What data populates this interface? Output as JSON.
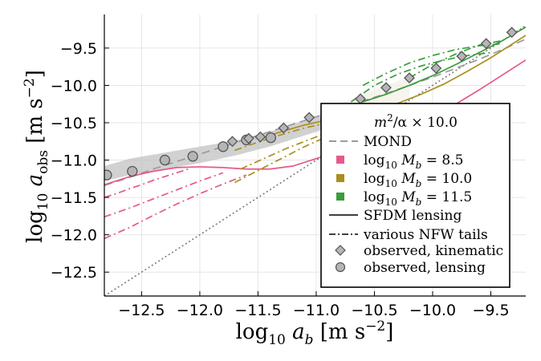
{
  "chart_data": {
    "type": "line",
    "xlabel": "log10 a_b [m s^-2]",
    "ylabel": "log10 a_obs [m s^-2]",
    "xlabel_parts": {
      "log": "log",
      "sub": "10",
      "var": " a",
      "var_sub": "b",
      "unit": " [m s",
      "unit_sup": "−2",
      "close": "]"
    },
    "ylabel_parts": {
      "log": "log",
      "sub": "10",
      "var": " a",
      "var_sub": "obs",
      "unit": " [m s",
      "unit_sup": "−2",
      "close": "]"
    },
    "xlim": [
      -12.82,
      -9.2
    ],
    "ylim": [
      -12.82,
      -9.05
    ],
    "grid": true,
    "xticks": [
      -12.5,
      -12.0,
      -11.5,
      -11.0,
      -10.5,
      -10.0,
      -9.5
    ],
    "xtick_labels": [
      "−12.5",
      "−12.0",
      "−11.5",
      "−11.0",
      "−10.5",
      "−10.0",
      "−9.5"
    ],
    "yticks": [
      -12.5,
      -12.0,
      -11.5,
      -11.0,
      -10.5,
      -10.0,
      -9.5
    ],
    "ytick_labels": [
      "−12.5",
      "−12.0",
      "−11.5",
      "−11.0",
      "−10.5",
      "−10.0",
      "−9.5"
    ],
    "legend": {
      "position": "bottom-right",
      "title": "m²/α × 10.0",
      "entries": [
        {
          "label": "MOND",
          "style": "dash-gray"
        },
        {
          "label": "log10 M_b = 8.5",
          "style": "swatch",
          "color": "#e7588c"
        },
        {
          "label": "log10 M_b = 10.0",
          "style": "swatch",
          "color": "#a8901f"
        },
        {
          "label": "log10 M_b = 11.5",
          "style": "swatch",
          "color": "#3a9c3d"
        },
        {
          "label": "SFDM lensing",
          "style": "solid-black"
        },
        {
          "label": "various NFW tails",
          "style": "dashdot-black"
        },
        {
          "label": "observed, kinematic",
          "style": "diamond"
        },
        {
          "label": "observed, lensing",
          "style": "circle"
        }
      ]
    },
    "legend_math": {
      "title_m": "m",
      "title_sup": "2",
      "title_rest": "/α × 10.0",
      "mb_prefix": "log",
      "mb_sub": "10",
      "mb_var": " M",
      "mb_var_sub": "b",
      "mb_values": [
        " = 8.5",
        " = 10.0",
        " = 11.5"
      ]
    },
    "series": [
      {
        "name": "one-to-one",
        "style": "dotted",
        "color": "#7a7a7a",
        "x": [
          -12.82,
          -9.2
        ],
        "y": [
          -12.82,
          -9.2
        ]
      },
      {
        "name": "MOND",
        "style": "dashed",
        "color": "#9a9a9a",
        "x": [
          -12.82,
          -12.6,
          -12.4,
          -12.2,
          -12.0,
          -11.8,
          -11.6,
          -11.4,
          -11.2,
          -11.0,
          -10.8,
          -10.6,
          -10.4,
          -10.2,
          -10.0,
          -9.8,
          -9.6,
          -9.4,
          -9.2
        ],
        "y": [
          -11.34,
          -11.23,
          -11.12,
          -11.02,
          -10.92,
          -10.82,
          -10.72,
          -10.62,
          -10.52,
          -10.42,
          -10.32,
          -10.21,
          -10.11,
          -10.0,
          -9.89,
          -9.77,
          -9.65,
          -9.52,
          -9.38
        ]
      },
      {
        "name": "SFDM lensing M8.5",
        "style": "solid",
        "color": "#e7588c",
        "x": [
          -12.82,
          -12.6,
          -12.4,
          -12.2,
          -12.0,
          -11.8,
          -11.6,
          -11.4,
          -11.2,
          -11.0,
          -10.8,
          -10.6,
          -10.4,
          -10.2,
          -10.0,
          -9.8,
          -9.6,
          -9.4,
          -9.2
        ],
        "y": [
          -11.33,
          -11.22,
          -11.15,
          -11.1,
          -11.09,
          -11.1,
          -11.12,
          -11.12,
          -11.08,
          -10.98,
          -10.88,
          -10.77,
          -10.66,
          -10.54,
          -10.4,
          -10.25,
          -10.06,
          -9.86,
          -9.66
        ]
      },
      {
        "name": "NFW M8.5 a",
        "style": "dashdot",
        "color": "#e7588c",
        "x": [
          -12.82,
          -12.7,
          -12.6,
          -12.5,
          -12.4,
          -12.3,
          -12.2,
          -12.1
        ],
        "y": [
          -11.5,
          -11.44,
          -11.38,
          -11.33,
          -11.27,
          -11.22,
          -11.17,
          -11.12
        ]
      },
      {
        "name": "NFW M8.5 b",
        "style": "dashdot",
        "color": "#e7588c",
        "x": [
          -12.82,
          -12.6,
          -12.4,
          -12.2,
          -12.0,
          -11.8
        ],
        "y": [
          -11.76,
          -11.64,
          -11.52,
          -11.4,
          -11.28,
          -11.17
        ]
      },
      {
        "name": "NFW M8.5 c",
        "style": "dashdot",
        "color": "#e7588c",
        "x": [
          -12.82,
          -12.6,
          -12.4,
          -12.2,
          -12.0,
          -11.8,
          -11.6
        ],
        "y": [
          -12.05,
          -11.9,
          -11.74,
          -11.59,
          -11.45,
          -11.32,
          -11.2
        ]
      },
      {
        "name": "SFDM lensing M10.0",
        "style": "solid",
        "color": "#a8901f",
        "x": [
          -11.5,
          -11.3,
          -11.1,
          -10.9,
          -10.7,
          -10.5,
          -10.3,
          -10.1,
          -9.9,
          -9.7,
          -9.5,
          -9.35,
          -9.2
        ],
        "y": [
          -10.72,
          -10.62,
          -10.53,
          -10.46,
          -10.4,
          -10.33,
          -10.24,
          -10.12,
          -9.98,
          -9.81,
          -9.63,
          -9.48,
          -9.33
        ]
      },
      {
        "name": "NFW M10.0 a",
        "style": "dashdot",
        "color": "#a8901f",
        "x": [
          -11.7,
          -11.5,
          -11.3,
          -11.1,
          -10.9,
          -10.7,
          -10.5
        ],
        "y": [
          -10.87,
          -10.76,
          -10.66,
          -10.57,
          -10.5,
          -10.45,
          -10.4
        ]
      },
      {
        "name": "NFW M10.0 b",
        "style": "dashdot",
        "color": "#a8901f",
        "x": [
          -11.65,
          -11.45,
          -11.25,
          -11.05,
          -10.85,
          -10.65,
          -10.45
        ],
        "y": [
          -11.12,
          -10.98,
          -10.84,
          -10.72,
          -10.6,
          -10.5,
          -10.42
        ]
      },
      {
        "name": "NFW M10.0 c",
        "style": "dashdot",
        "color": "#a8901f",
        "x": [
          -11.7,
          -11.5,
          -11.3,
          -11.1,
          -10.9,
          -10.7,
          -10.5,
          -10.3
        ],
        "y": [
          -11.3,
          -11.14,
          -10.98,
          -10.82,
          -10.68,
          -10.56,
          -10.46,
          -10.36
        ]
      },
      {
        "name": "SFDM lensing M11.5",
        "style": "solid",
        "color": "#3a9c3d",
        "x": [
          -10.6,
          -10.4,
          -10.2,
          -10.0,
          -9.8,
          -9.6,
          -9.4,
          -9.2
        ],
        "y": [
          -10.22,
          -10.12,
          -10.0,
          -9.87,
          -9.72,
          -9.56,
          -9.4,
          -9.22
        ]
      },
      {
        "name": "NFW M11.5 a",
        "style": "dashdot",
        "color": "#3a9c3d",
        "x": [
          -10.2,
          -10.0,
          -9.8,
          -9.6,
          -9.4
        ],
        "y": [
          -9.9,
          -9.72,
          -9.58,
          -9.46,
          -9.4
        ]
      },
      {
        "name": "NFW M11.5 b",
        "style": "dashdot",
        "color": "#3a9c3d",
        "x": [
          -10.6,
          -10.4,
          -10.2,
          -10.0,
          -9.8,
          -9.6,
          -9.4
        ],
        "y": [
          -10.0,
          -9.84,
          -9.7,
          -9.6,
          -9.52,
          -9.47,
          -9.44
        ]
      },
      {
        "name": "NFW M11.5 c",
        "style": "dashdot",
        "color": "#3a9c3d",
        "x": [
          -10.7,
          -10.5,
          -10.3,
          -10.1,
          -9.9,
          -9.7,
          -9.5
        ],
        "y": [
          -10.22,
          -10.0,
          -9.85,
          -9.74,
          -9.66,
          -9.6,
          -9.56
        ]
      }
    ],
    "band_lensing": {
      "color": "#bdbdbd",
      "x": [
        -12.82,
        -12.6,
        -12.3,
        -12.0,
        -11.7,
        -11.4,
        -11.1,
        -10.8
      ],
      "upper": [
        -11.08,
        -10.98,
        -10.9,
        -10.82,
        -10.74,
        -10.62,
        -10.47,
        -10.32
      ],
      "lower": [
        -11.28,
        -11.2,
        -11.12,
        -11.04,
        -10.94,
        -10.82,
        -10.67,
        -10.52
      ]
    },
    "band_mond": {
      "color": "#f3efe6",
      "x": [
        -10.8,
        -10.6,
        -10.4,
        -10.2
      ],
      "upper": [
        -10.24,
        -10.12,
        -10.0,
        -9.88
      ],
      "lower": [
        -10.5,
        -10.4,
        -10.28,
        -10.16
      ]
    },
    "observed_kinematic": {
      "marker": "diamond",
      "x": [
        -11.72,
        -11.58,
        -11.48,
        -11.28,
        -11.06,
        -10.84,
        -10.62,
        -10.4,
        -10.2,
        -9.97,
        -9.75,
        -9.54,
        -9.32
      ],
      "y": [
        -10.75,
        -10.71,
        -10.69,
        -10.57,
        -10.43,
        -10.31,
        -10.18,
        -10.03,
        -9.9,
        -9.77,
        -9.61,
        -9.44,
        -9.29
      ]
    },
    "observed_lensing": {
      "marker": "circle",
      "x": [
        -12.8,
        -12.58,
        -12.3,
        -12.06,
        -11.8,
        -11.6,
        -11.39
      ],
      "y": [
        -11.2,
        -11.15,
        -11.0,
        -10.95,
        -10.82,
        -10.73,
        -10.7
      ]
    }
  }
}
